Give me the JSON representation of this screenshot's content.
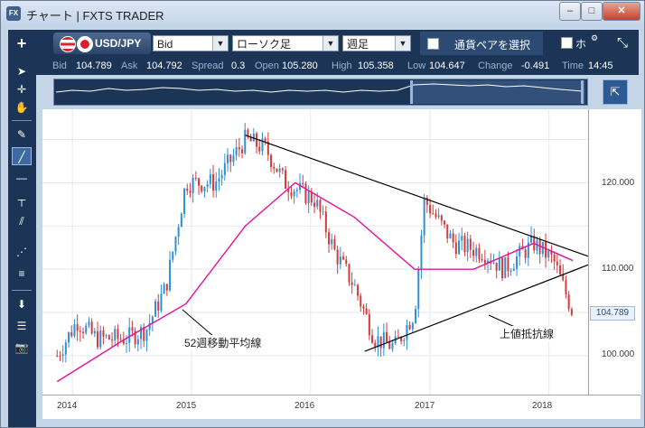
{
  "window": {
    "title": "チャート | FXTS TRADER",
    "app_icon": "FX",
    "buttons": {
      "minimize": "–",
      "maximize": "□",
      "close": "✕"
    }
  },
  "toolbar": {
    "add": "+",
    "pair_label": "USD/JPY",
    "price_type": "Bid",
    "chart_type": "ローソク足",
    "period": "週足",
    "pair_select_label": "通貨ペアを選択",
    "overflow_label": "ホ",
    "settings_icon": "⚙",
    "collapse_icon": "⤡"
  },
  "ticker": {
    "bid_label": "Bid",
    "bid": "104.789",
    "ask_label": "Ask",
    "ask": "104.792",
    "spread_label": "Spread",
    "spread": "0.3",
    "open_label": "Open",
    "open": "105.280",
    "high_label": "High",
    "high": "105.358",
    "low_label": "Low",
    "low": "104.647",
    "change_label": "Change",
    "change": "-0.491",
    "time_label": "Time",
    "time": "14:45"
  },
  "chart": {
    "y_ticks": [
      "120.000",
      "110.000",
      "100.000"
    ],
    "x_ticks": [
      "2014",
      "2015",
      "2016",
      "2017",
      "2018"
    ],
    "current_price": "104.789",
    "annotation_ma": "52週移動平均線",
    "annotation_resistance": "上値抵抗線",
    "colors": {
      "up": "#2f8fd6",
      "down": "#d63b3b",
      "ma": "#e5139a",
      "trend": "#000000"
    }
  },
  "chart_data": {
    "type": "candlestick",
    "instrument": "USD/JPY",
    "timeframe": "週足",
    "ylim": [
      95.5,
      128.5
    ],
    "xlim": [
      "2013-10",
      "2018-05"
    ],
    "series": [
      {
        "name": "close",
        "x": [
          "2013-11",
          "2014-01",
          "2014-03",
          "2014-06",
          "2014-08",
          "2014-10",
          "2014-12",
          "2015-03",
          "2015-06",
          "2015-08",
          "2015-10",
          "2016-01",
          "2016-03",
          "2016-05",
          "2016-07",
          "2016-09",
          "2016-11",
          "2016-12",
          "2017-03",
          "2017-06",
          "2017-08",
          "2017-11",
          "2018-01",
          "2018-03"
        ],
        "values": [
          100,
          104,
          102,
          102,
          103,
          108,
          120,
          120,
          125,
          124,
          120,
          118,
          112,
          108,
          102,
          101,
          105,
          118,
          113,
          112,
          110,
          113,
          111,
          105
        ]
      },
      {
        "name": "52週移動平均線",
        "x": [
          "2013-11",
          "2014-06",
          "2014-12",
          "2015-06",
          "2015-11",
          "2016-05",
          "2016-11",
          "2017-05",
          "2017-11",
          "2018-03"
        ],
        "values": [
          97,
          102,
          106,
          115,
          120,
          116,
          110,
          110,
          113,
          111
        ]
      }
    ]
  }
}
